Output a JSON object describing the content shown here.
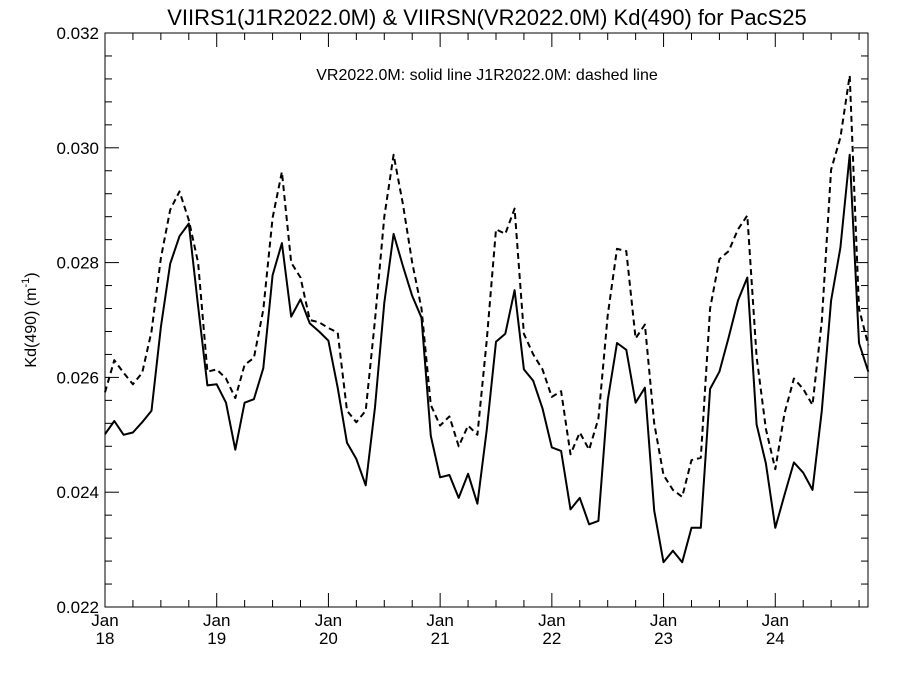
{
  "chart_data": {
    "type": "line",
    "title": "VIIRS1(J1R2022.0M) & VIIRSN(VR2022.0M)  Kd(490) for PacS25",
    "legend_text": "VR2022.0M: solid line   J1R2022.0M: dashed line",
    "ylabel": "Kd(490) (m",
    "ylabel_sup": "-1",
    "ylabel_close": ")",
    "xlabel": "",
    "ylim": [
      0.022,
      0.032
    ],
    "xlim": [
      2018.0,
      2024.83
    ],
    "y_ticks": [
      {
        "value": 0.022,
        "label": "0.022"
      },
      {
        "value": 0.024,
        "label": "0.024"
      },
      {
        "value": 0.026,
        "label": "0.026"
      },
      {
        "value": 0.028,
        "label": "0.028"
      },
      {
        "value": 0.03,
        "label": "0.030"
      },
      {
        "value": 0.032,
        "label": "0.032"
      }
    ],
    "x_ticks": [
      {
        "value": 2018,
        "month": "Jan",
        "year": "18"
      },
      {
        "value": 2019,
        "month": "Jan",
        "year": "19"
      },
      {
        "value": 2020,
        "month": "Jan",
        "year": "20"
      },
      {
        "value": 2021,
        "month": "Jan",
        "year": "21"
      },
      {
        "value": 2022,
        "month": "Jan",
        "year": "22"
      },
      {
        "value": 2023,
        "month": "Jan",
        "year": "23"
      },
      {
        "value": 2024,
        "month": "Jan",
        "year": "24"
      }
    ],
    "series": [
      {
        "name": "VR2022.0M",
        "style": "solid",
        "color": "#000000",
        "x_start": 2018.0,
        "x_step": 0.08333,
        "values": [
          0.02501,
          0.02524,
          0.025,
          0.02504,
          0.02522,
          0.02542,
          0.02688,
          0.02798,
          0.02846,
          0.02868,
          0.02724,
          0.02586,
          0.02588,
          0.02556,
          0.02474,
          0.02556,
          0.02562,
          0.02616,
          0.02778,
          0.02834,
          0.02706,
          0.02736,
          0.02694,
          0.0268,
          0.02664,
          0.02582,
          0.02486,
          0.02458,
          0.02412,
          0.02548,
          0.0273,
          0.0285,
          0.02794,
          0.02742,
          0.02704,
          0.02498,
          0.02426,
          0.0243,
          0.0239,
          0.02432,
          0.0238,
          0.02508,
          0.02662,
          0.02676,
          0.02752,
          0.02614,
          0.02594,
          0.02546,
          0.02478,
          0.02472,
          0.0237,
          0.0239,
          0.02344,
          0.0235,
          0.0256,
          0.0266,
          0.02648,
          0.02556,
          0.02582,
          0.02368,
          0.02278,
          0.02298,
          0.02278,
          0.02338,
          0.02338,
          0.0258,
          0.0261,
          0.0267,
          0.02734,
          0.02774,
          0.02518,
          0.0245,
          0.02338,
          0.02396,
          0.02452,
          0.02434,
          0.02404,
          0.02542,
          0.02734,
          0.02826,
          0.02988,
          0.0266,
          0.0261
        ]
      },
      {
        "name": "J1R2022.0M",
        "style": "dashed",
        "color": "#000000",
        "x_start": 2018.0,
        "x_step": 0.08333,
        "values": [
          0.02574,
          0.0263,
          0.02608,
          0.02588,
          0.02608,
          0.0268,
          0.02808,
          0.02892,
          0.02924,
          0.02874,
          0.028,
          0.0261,
          0.02614,
          0.02598,
          0.02564,
          0.02622,
          0.02634,
          0.02718,
          0.02878,
          0.02958,
          0.028,
          0.02774,
          0.027,
          0.02696,
          0.02686,
          0.02678,
          0.02542,
          0.02522,
          0.02542,
          0.027,
          0.0288,
          0.02988,
          0.02902,
          0.028,
          0.0272,
          0.02552,
          0.02516,
          0.02532,
          0.0248,
          0.02516,
          0.025,
          0.02664,
          0.02858,
          0.0285,
          0.02894,
          0.02676,
          0.0264,
          0.02614,
          0.02566,
          0.02576,
          0.02466,
          0.02504,
          0.02474,
          0.02528,
          0.02708,
          0.02824,
          0.0282,
          0.02668,
          0.02692,
          0.0252,
          0.0243,
          0.02404,
          0.02392,
          0.02456,
          0.0246,
          0.0272,
          0.02806,
          0.0282,
          0.02858,
          0.02882,
          0.02636,
          0.0251,
          0.0244,
          0.02538,
          0.02598,
          0.0258,
          0.02552,
          0.02698,
          0.02962,
          0.03018,
          0.03126,
          0.0272,
          0.02656
        ]
      }
    ]
  }
}
